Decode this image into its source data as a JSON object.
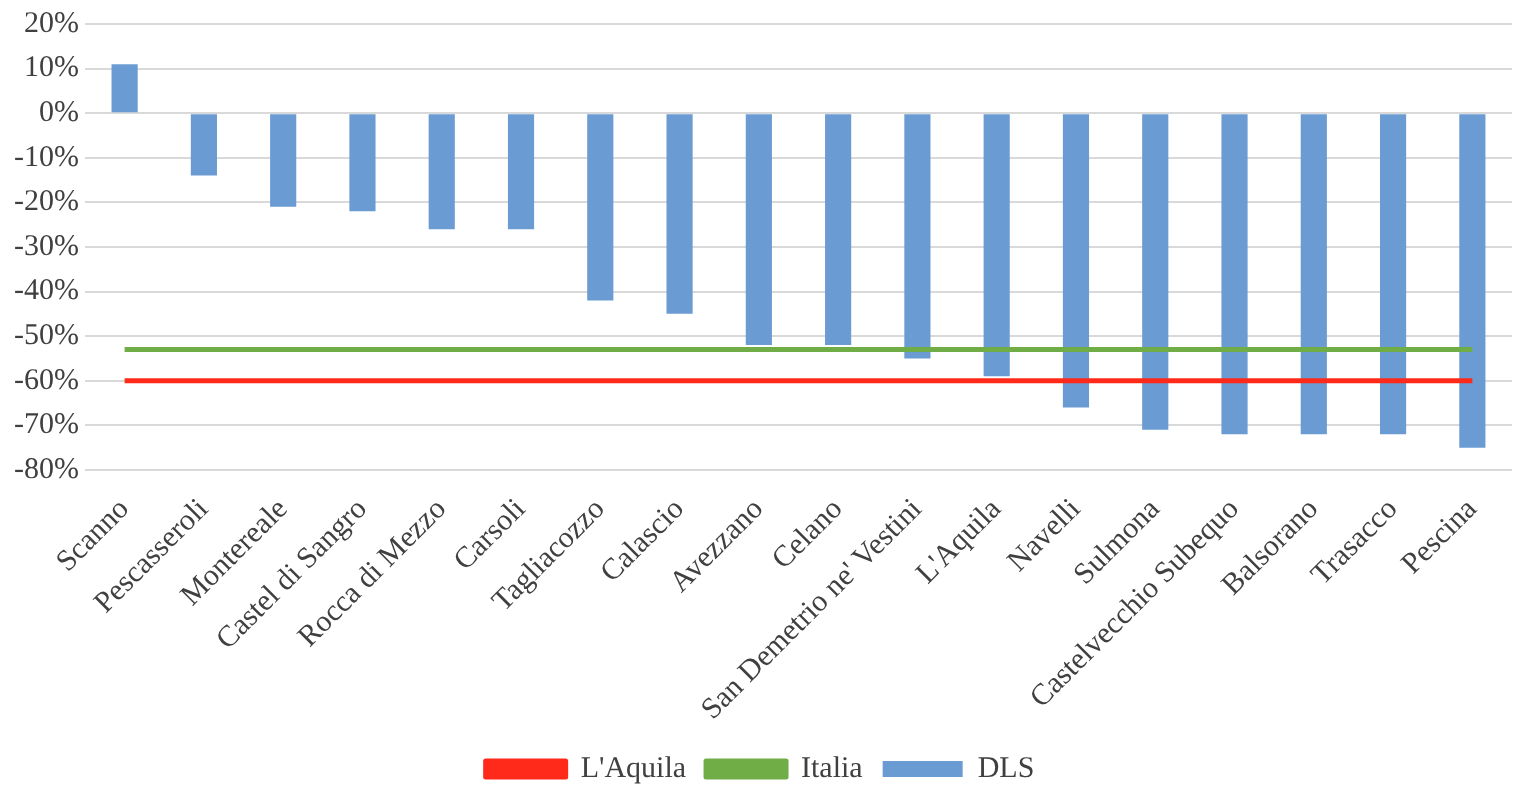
{
  "chart_data": {
    "type": "bar",
    "categories": [
      "Scanno",
      "Pescasseroli",
      "Montereale",
      "Castel di Sangro",
      "Rocca di Mezzo",
      "Carsoli",
      "Tagliacozzo",
      "Calascio",
      "Avezzano",
      "Celano",
      "San Demetrio ne' Vestini",
      "L'Aquila",
      "Navelli",
      "Sulmona",
      "Castelvecchio Subequo",
      "Balsorano",
      "Trasacco",
      "Pescina"
    ],
    "series": [
      {
        "name": "DLS",
        "color": "#6a9bd3",
        "values": [
          11,
          -14,
          -21,
          -22,
          -26,
          -26,
          -42,
          -45,
          -52,
          -52,
          -55,
          -59,
          -66,
          -71,
          -72,
          -72,
          -72,
          -75
        ]
      },
      {
        "name": "L'Aquila",
        "type": "line",
        "color": "#ff2a1a",
        "values": [
          -60,
          -60,
          -60,
          -60,
          -60,
          -60,
          -60,
          -60,
          -60,
          -60,
          -60,
          -60,
          -60,
          -60,
          -60,
          -60,
          -60,
          -60
        ]
      },
      {
        "name": "Italia",
        "type": "line",
        "color": "#70ad47",
        "values": [
          -53,
          -53,
          -53,
          -53,
          -53,
          -53,
          -53,
          -53,
          -53,
          -53,
          -53,
          -53,
          -53,
          -53,
          -53,
          -53,
          -53,
          -53
        ]
      }
    ],
    "ylim": [
      -80,
      20
    ],
    "yticks": [
      {
        "value": -80,
        "label": "-80%"
      },
      {
        "value": -70,
        "label": "-70%"
      },
      {
        "value": -60,
        "label": "-60%"
      },
      {
        "value": -50,
        "label": "-50%"
      },
      {
        "value": -40,
        "label": "-40%"
      },
      {
        "value": -30,
        "label": "-30%"
      },
      {
        "value": -20,
        "label": "-20%"
      },
      {
        "value": -10,
        "label": "-10%"
      },
      {
        "value": 0,
        "label": "0%"
      },
      {
        "value": 10,
        "label": "10%"
      },
      {
        "value": 20,
        "label": "20%"
      }
    ],
    "grid": "y",
    "legend": "bottom",
    "marker": "none"
  }
}
